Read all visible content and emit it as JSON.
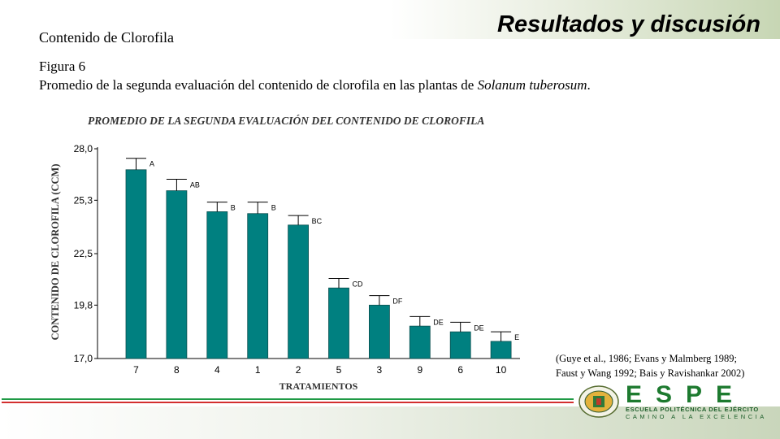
{
  "slide": {
    "section_title": "Contenido de Clorofila",
    "header_title": "Resultados y discusión",
    "figure_label": "Figura 6",
    "figure_caption": "Promedio de la segunda evaluación del contenido de clorofila en las plantas de",
    "figure_caption_species": "Solanum tuberosum",
    "figure_caption_end": ".",
    "citation_line1": "(Guye et al., 1986; Evans y Malmberg 1989;",
    "citation_line2": "Faust y Wang 1992; Bais y Ravishankar 2002)"
  },
  "logo": {
    "word": "ESPE",
    "subtitle1": "ESCUELA POLITÉCNICA DEL EJÉRCITO",
    "subtitle2": "CAMINO A LA EXCELENCIA"
  },
  "colors": {
    "bar": "#008080",
    "bar_outline": "#0b4f4f",
    "title_text": "#333333"
  },
  "chart_data": {
    "type": "bar",
    "title": "PROMEDIO DE LA SEGUNDA EVALUACIÓN DEL CONTENIDO DE CLOROFILA",
    "xlabel": "TRATAMIENTOS",
    "ylabel": "CONTENIDO DE CLOROFILA (CCM)",
    "categories": [
      "7",
      "8",
      "4",
      "1",
      "2",
      "5",
      "3",
      "9",
      "6",
      "10"
    ],
    "values": [
      26.9,
      25.8,
      24.7,
      24.6,
      24.0,
      20.7,
      19.8,
      18.7,
      18.4,
      17.9
    ],
    "errors": [
      0.6,
      0.6,
      0.5,
      0.6,
      0.5,
      0.5,
      0.5,
      0.5,
      0.5,
      0.5
    ],
    "letters": [
      "A",
      "AB",
      "B",
      "B",
      "BC",
      "CD",
      "DF",
      "DE",
      "DE",
      "E"
    ],
    "yticks": [
      "28,0",
      "25,3",
      "22,5",
      "19,8",
      "17,0"
    ],
    "ylim": [
      17.0,
      28.0
    ],
    "grid": false
  }
}
